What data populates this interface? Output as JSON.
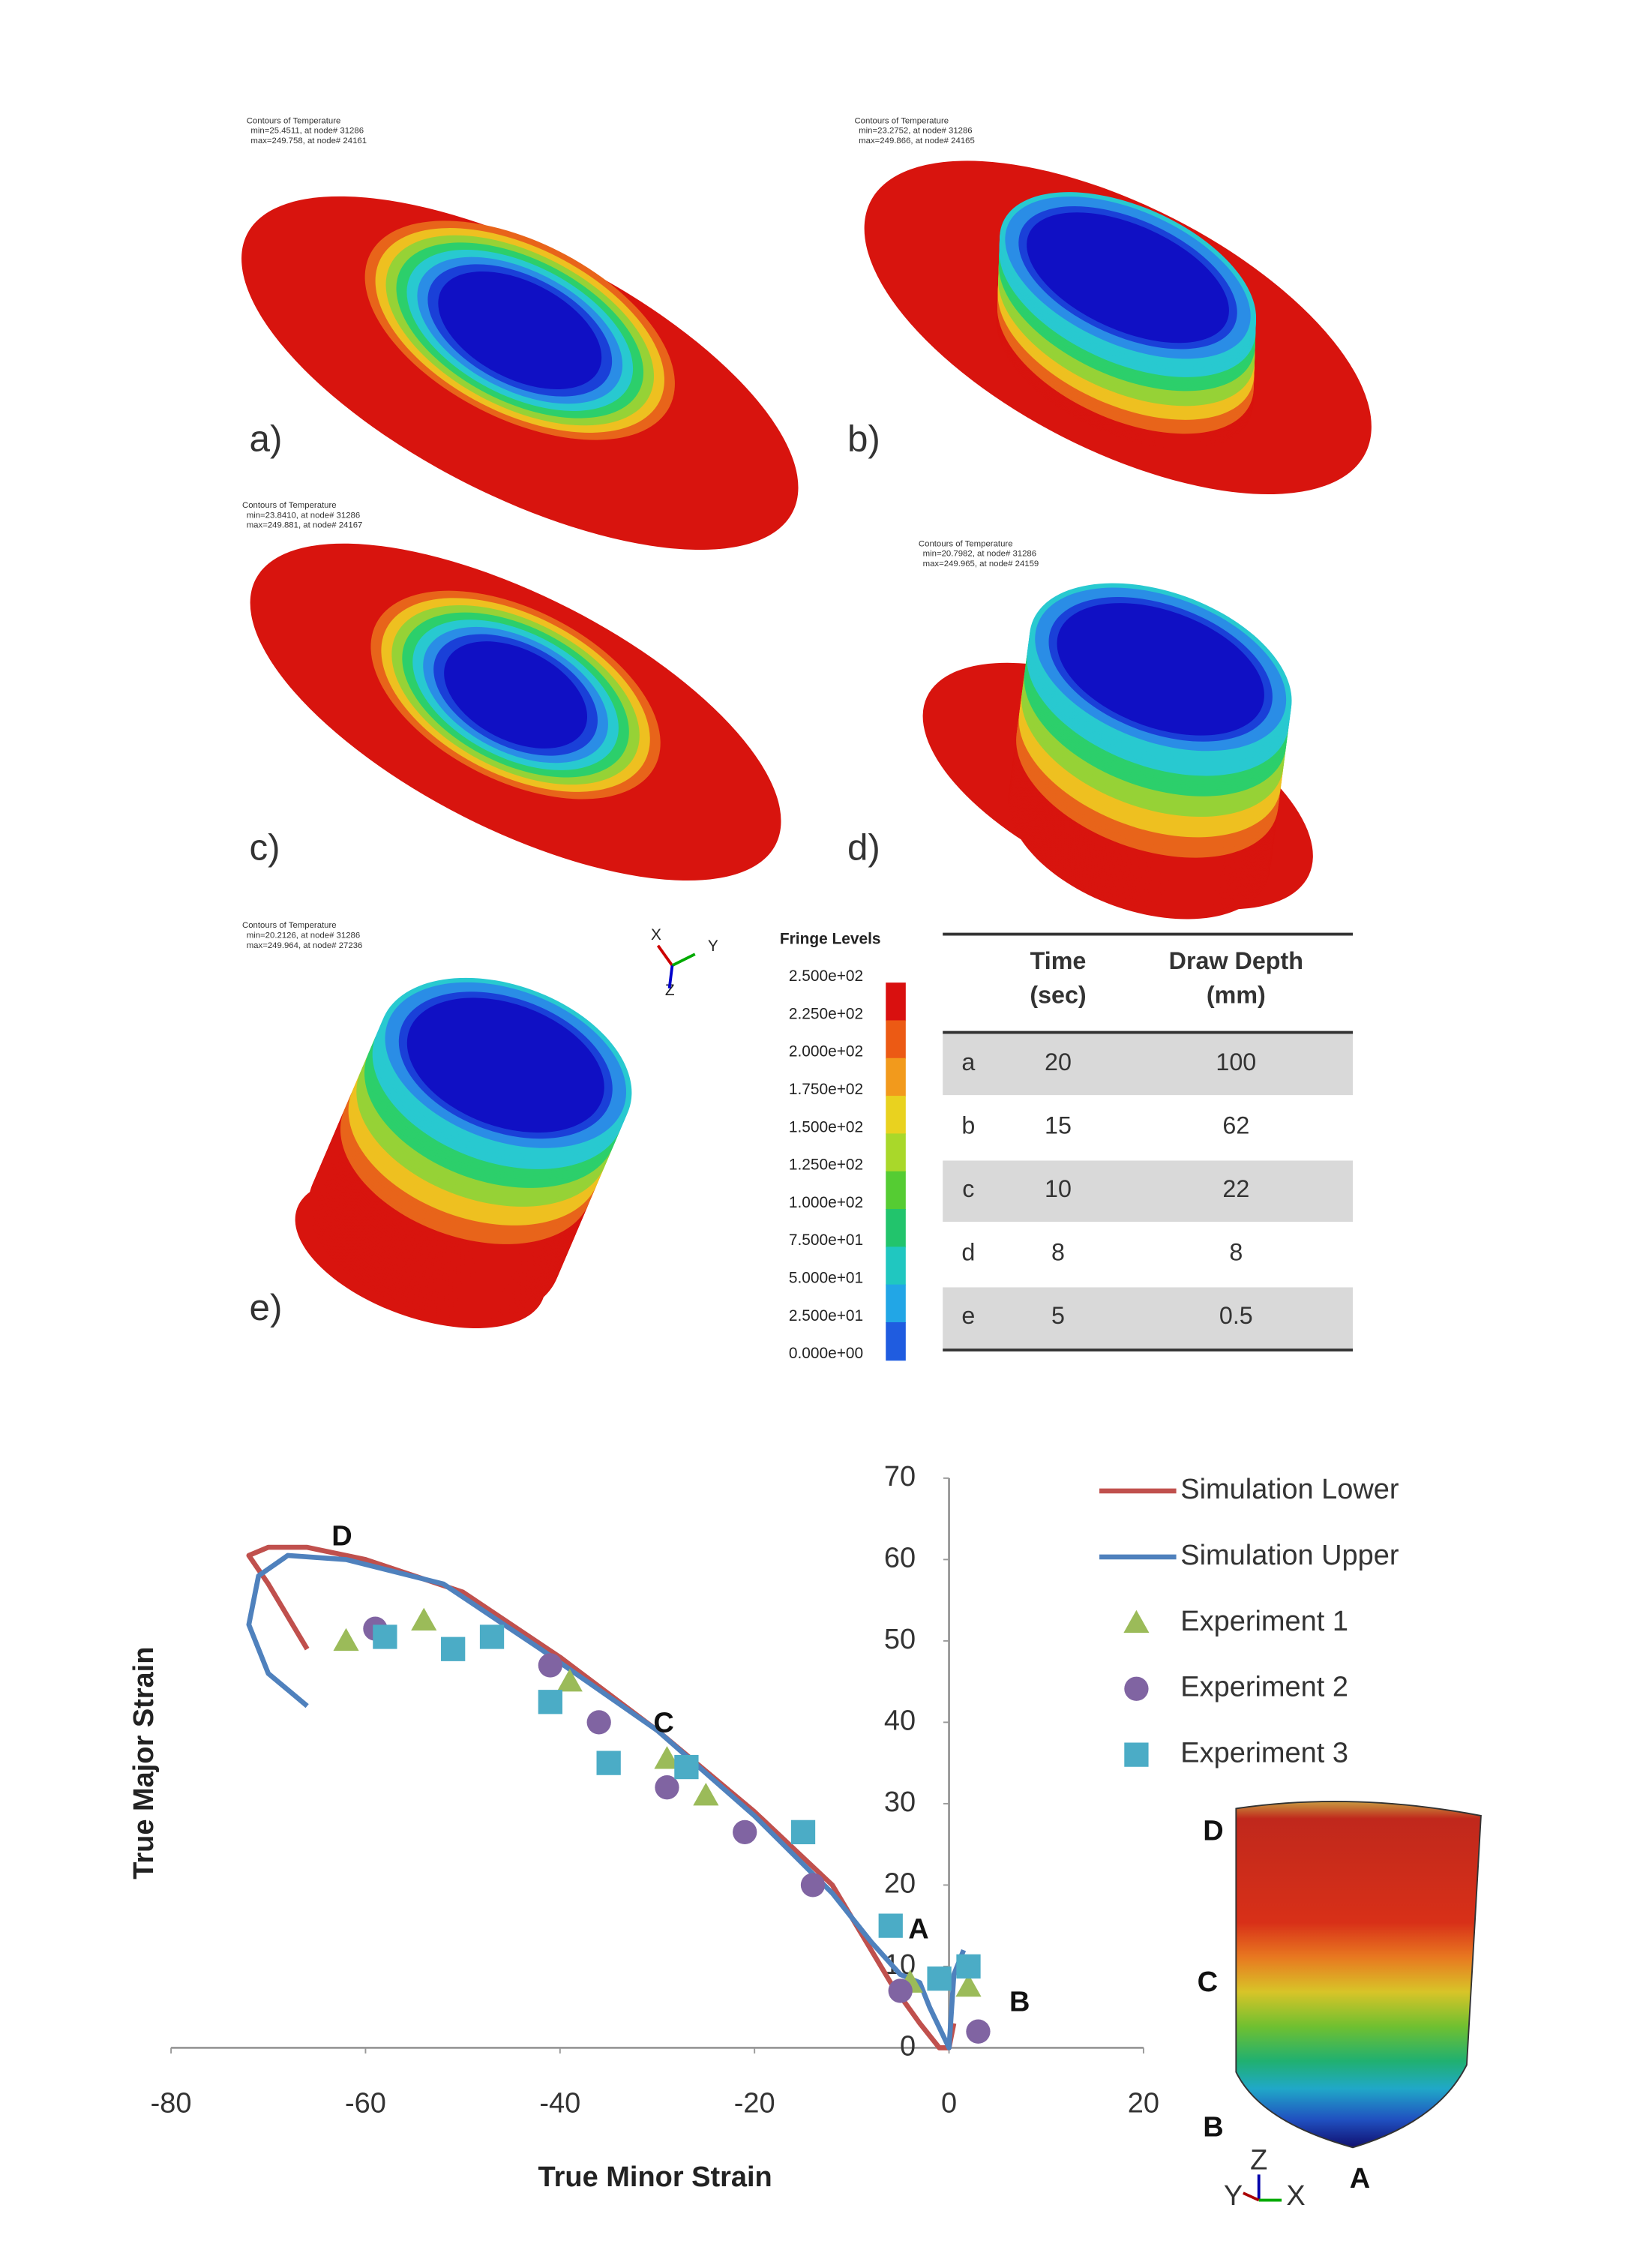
{
  "panels": [
    {
      "label": "a)",
      "contour": [
        "Contours of Temperature",
        "min=25.4511, at node# 31286",
        "max=249.758, at node# 24161"
      ]
    },
    {
      "label": "b)",
      "contour": [
        "Contours of Temperature",
        "min=23.2752, at node# 31286",
        "max=249.866, at node# 24165"
      ]
    },
    {
      "label": "c)",
      "contour": [
        "Contours of Temperature",
        "min=23.8410, at node# 31286",
        "max=249.881, at node# 24167"
      ]
    },
    {
      "label": "d)",
      "contour": [
        "Contours of Temperature",
        "min=20.7982, at node# 31286",
        "max=249.965, at node# 24159"
      ]
    },
    {
      "label": "e)",
      "contour": [
        "Contours of Temperature",
        "min=20.2126, at node# 31286",
        "max=249.964, at node# 27236"
      ]
    }
  ],
  "triad": [
    "X",
    "Y",
    "Z"
  ],
  "fringe": {
    "title": "Fringe Levels",
    "levels": [
      "2.500e+02",
      "2.250e+02",
      "2.000e+02",
      "1.750e+02",
      "1.500e+02",
      "1.250e+02",
      "1.000e+02",
      "7.500e+01",
      "5.000e+01",
      "2.500e+01",
      "0.000e+00"
    ]
  },
  "table": {
    "header": [
      [
        "Time",
        "(sec)"
      ],
      [
        "Draw Depth",
        "(mm)"
      ]
    ],
    "rows": [
      [
        "a",
        20,
        100
      ],
      [
        "b",
        15,
        62
      ],
      [
        "c",
        10,
        22
      ],
      [
        "d",
        8,
        8
      ],
      [
        "e",
        5,
        0.5
      ]
    ]
  },
  "chart_data": {
    "type": "scatter",
    "xlabel": "True Minor Strain",
    "ylabel": "True Major Strain",
    "xlim": [
      -80,
      20
    ],
    "ylim": [
      0,
      70
    ],
    "xticks": [
      -80,
      -60,
      -40,
      -20,
      0,
      20
    ],
    "yticks": [
      0,
      10,
      20,
      30,
      40,
      50,
      60,
      70
    ],
    "series": [
      {
        "name": "Simulation Lower",
        "color": "#c0504d",
        "mode": "line",
        "x": [
          -66,
          -68,
          -70,
          -72,
          -70,
          -66,
          -60,
          -50,
          -40,
          -30,
          -20,
          -12,
          -9,
          -6,
          -3,
          -1,
          0,
          0.5
        ],
        "values": [
          49,
          53,
          57,
          60.5,
          61.5,
          61.5,
          60,
          56,
          48,
          39,
          29,
          20,
          14,
          8,
          3,
          0,
          0,
          3
        ]
      },
      {
        "name": "Simulation Upper",
        "color": "#4f81bd",
        "mode": "line",
        "x": [
          -66,
          -70,
          -72,
          -71,
          -68,
          -62,
          -52,
          -42,
          -30,
          -20,
          -12,
          -8,
          -5,
          -3,
          -2,
          0,
          0.5,
          1.5
        ],
        "values": [
          42,
          46,
          52,
          58,
          60.5,
          60,
          57,
          49,
          39,
          28.5,
          19,
          13,
          9,
          8,
          5,
          0,
          9,
          12
        ]
      },
      {
        "name": "Experiment 1",
        "color": "#9bbb59",
        "mode": "marker",
        "marker": "triangle",
        "x": [
          -62,
          -54,
          -39,
          -29,
          -25,
          -4,
          2
        ],
        "values": [
          50,
          52.5,
          45,
          35.5,
          31,
          8,
          7.5
        ]
      },
      {
        "name": "Experiment 2",
        "color": "#8064a2",
        "mode": "marker",
        "marker": "circle",
        "x": [
          -59,
          -41,
          -36,
          -29,
          -21,
          -14,
          -5,
          3
        ],
        "values": [
          51.5,
          47,
          40,
          32,
          26.5,
          20,
          7,
          2
        ]
      },
      {
        "name": "Experiment 3",
        "color": "#4bacc6",
        "mode": "marker",
        "marker": "square",
        "x": [
          -58,
          -51,
          -47,
          -41,
          -35,
          -27,
          -15,
          -6,
          -1,
          2
        ],
        "values": [
          50.5,
          49,
          50.5,
          42.5,
          35,
          34.5,
          26.5,
          15,
          8.5,
          10
        ]
      }
    ],
    "annotations": [
      "D",
      "C",
      "A",
      "B"
    ]
  },
  "inset": {
    "labels": [
      "D",
      "C",
      "B",
      "A"
    ],
    "triad": [
      "Y",
      "Z",
      "X"
    ]
  }
}
